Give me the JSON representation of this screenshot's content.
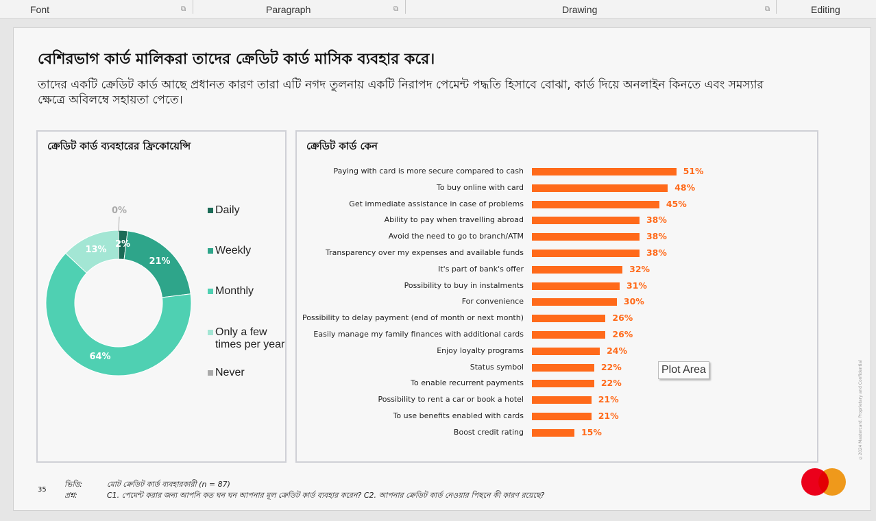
{
  "ribbon": {
    "groups": [
      {
        "label": "Font"
      },
      {
        "label": "Paragraph"
      },
      {
        "label": "Drawing"
      },
      {
        "label": "Editing"
      }
    ]
  },
  "slide": {
    "title": "বেশিরভাগ কার্ড মালিকরা তাদের ক্রেডিট কার্ড মাসিক ব্যবহার করে।",
    "subtitle": "তাদের একটি ক্রেডিট কার্ড আছে প্রধানত কারণ তারা এটি নগদ তুলনায় একটি নিরাপদ পেমেন্ট পদ্ধতি হিসাবে বোঝা, কার্ড দিয়ে অনলাইন কিনতে এবং সমস্যার ক্ষেত্রে অবিলম্বে সহায়তা পেতে।",
    "page_number": "35",
    "vertical_note": "©2024 Mastercard. Proprietary and Confidential",
    "footer": {
      "base_label": "ভিত্তি:",
      "base_text": "মোট ক্রেডিট কার্ড ব্যবহারকারী (n = 87)",
      "question_label": "প্রশ্ন:",
      "question_text": "C1. পেমেন্ট করার জন্য আপনি কত ঘন ঘন আপনার মূল ক্রেডিট কার্ড ব্যবহার করেন? C2. আপনার ক্রেডিট কার্ড নেওয়ার পিছনে কী কারণ রয়েছে?"
    },
    "logo": {
      "left_color": "#eb001b",
      "right_color": "#f79e1b"
    },
    "tooltip": "Plot Area"
  },
  "colors": {
    "daily": "#1b6b57",
    "weekly": "#2ea58a",
    "monthly": "#4fd0b2",
    "few_times": "#a3e6d4",
    "never": "#aaaaaa",
    "bar": "#ff6a1a"
  },
  "chart_data": [
    {
      "type": "pie",
      "title": "ক্রেডিট কার্ড ব্যবহারের ফ্রিকোয়েন্সি",
      "donut": true,
      "categories": [
        "Daily",
        "Weekly",
        "Monthly",
        "Only a few times per year",
        "Never"
      ],
      "values": [
        2,
        21,
        64,
        13,
        0
      ],
      "value_labels": [
        "2%",
        "21%",
        "64%",
        "13%",
        "0%"
      ],
      "legend": "right"
    },
    {
      "type": "bar",
      "orientation": "horizontal",
      "title": "ক্রেডিট কার্ড কেন",
      "categories": [
        "Paying with card is more secure compared to cash",
        "To buy online with card",
        "Get immediate assistance in case of problems",
        "Ability to pay when travelling abroad",
        "Avoid the need to go to branch/ATM",
        "Transparency over my expenses and available funds",
        "It's part of bank's offer",
        "Possibility to buy in instalments",
        "For convenience",
        "Possibility to delay payment (end of month or next month)",
        "Easily manage my family finances with additional cards",
        "Enjoy loyalty programs",
        "Status symbol",
        "To enable recurrent payments",
        "Possibility to rent a car or book a hotel",
        "To use benefits enabled with cards",
        "Boost credit rating"
      ],
      "values": [
        51,
        48,
        45,
        38,
        38,
        38,
        32,
        31,
        30,
        26,
        26,
        24,
        22,
        22,
        21,
        21,
        15
      ],
      "value_labels": [
        "51%",
        "48%",
        "45%",
        "38%",
        "38%",
        "38%",
        "32%",
        "31%",
        "30%",
        "26%",
        "26%",
        "24%",
        "22%",
        "22%",
        "21%",
        "21%",
        "15%"
      ]
    }
  ]
}
